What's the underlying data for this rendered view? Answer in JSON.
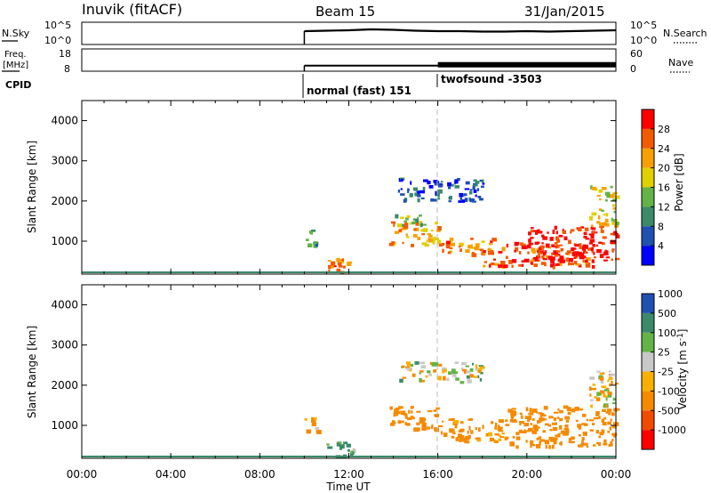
{
  "header": {
    "station": "Inuvik (fitACF)",
    "beam": "Beam 15",
    "date": "31/Jan/2015"
  },
  "noise_panel": {
    "left_label": "N.Sky",
    "right_label": "N.Search",
    "left_ticks": [
      "10^5",
      "10^0"
    ],
    "right_ticks": [
      "10^5",
      "10^0"
    ]
  },
  "freq_panel": {
    "left_label_line1": "Freq.",
    "left_label_line2": "[MHz]",
    "right_label": "Nave",
    "left_ticks": [
      "18",
      "8"
    ],
    "right_ticks": [
      "60",
      "0"
    ]
  },
  "cpid_panel": {
    "label": "CPID",
    "modes": [
      {
        "label": "normal (fast) 151",
        "start_hour": 10.0
      },
      {
        "label": "twofsound -3503",
        "start_hour": 16.0
      }
    ]
  },
  "colors": {
    "power_scale": [
      "#0000ff",
      "#2050b0",
      "#3a8a6a",
      "#63b347",
      "#e0d000",
      "#f7a000",
      "#f25a00",
      "#ff0000"
    ],
    "velocity_scale": [
      "#ff0000",
      "#f24a00",
      "#f58a00",
      "#f7b000",
      "#c8c8c8",
      "#63b347",
      "#3a8a6a",
      "#2050b0"
    ]
  },
  "chart_data": [
    {
      "type": "line",
      "title": "N.Sky",
      "x_unit": "hours UT",
      "xlim": [
        0,
        24
      ],
      "series": [
        {
          "name": "N.Sky",
          "x": [
            10.0,
            11,
            12,
            13,
            14,
            15,
            16,
            17,
            18,
            19,
            20,
            21,
            22,
            23,
            24
          ],
          "y": [
            3.0,
            3.1,
            3.2,
            3.4,
            3.3,
            3.1,
            3.0,
            3.0,
            2.9,
            2.9,
            3.0,
            2.9,
            3.0,
            3.1,
            3.2
          ]
        }
      ]
    },
    {
      "type": "line",
      "title": "Freq. [MHz]",
      "ylim": [
        8,
        18
      ],
      "series": [
        {
          "name": "Freq.",
          "x": [
            10.0,
            16.0,
            24.0
          ],
          "y": [
            10.5,
            10.5,
            10.5
          ]
        }
      ]
    },
    {
      "type": "heatmap",
      "title": "Power [dB]",
      "xlabel": "Time UT",
      "ylabel": "Slant Range [km]",
      "xlim": [
        0,
        24
      ],
      "ylim": [
        180,
        4500
      ],
      "x_ticks": [
        "00:00",
        "04:00",
        "08:00",
        "12:00",
        "16:00",
        "20:00",
        "00:00"
      ],
      "y_ticks": [
        1000,
        2000,
        3000,
        4000
      ],
      "colorbar_label": "Power [dB]",
      "colorbar_ticks": [
        4,
        8,
        12,
        16,
        20,
        24,
        28
      ],
      "clim": [
        0,
        32
      ],
      "regions": [
        {
          "t_start": 10.0,
          "t_end": 10.6,
          "r_start": 850,
          "r_end": 1300,
          "level": 10
        },
        {
          "t_start": 10.7,
          "t_end": 12.2,
          "r_start": 250,
          "r_end": 600,
          "level": 24
        },
        {
          "t_start": 13.8,
          "t_end": 16.0,
          "r_start": 900,
          "r_end": 1500,
          "level": 22
        },
        {
          "t_start": 14.0,
          "t_end": 15.5,
          "r_start": 1400,
          "r_end": 1700,
          "level": 14
        },
        {
          "t_start": 14.2,
          "t_end": 18.0,
          "r_start": 2000,
          "r_end": 2600,
          "level": 6
        },
        {
          "t_start": 16.0,
          "t_end": 18.5,
          "r_start": 700,
          "r_end": 1100,
          "level": 24
        },
        {
          "t_start": 18.0,
          "t_end": 23.0,
          "r_start": 400,
          "r_end": 1000,
          "level": 26
        },
        {
          "t_start": 20.0,
          "t_end": 24.0,
          "r_start": 500,
          "r_end": 1400,
          "level": 30
        },
        {
          "t_start": 22.8,
          "t_end": 24.0,
          "r_start": 1400,
          "r_end": 2400,
          "level": 18
        }
      ]
    },
    {
      "type": "heatmap",
      "title": "Velocity [m s-1]",
      "xlabel": "Time UT",
      "ylabel": "Slant Range [km]",
      "xlim": [
        0,
        24
      ],
      "ylim": [
        180,
        4500
      ],
      "x_ticks": [
        "00:00",
        "04:00",
        "08:00",
        "12:00",
        "16:00",
        "20:00",
        "00:00"
      ],
      "y_ticks": [
        1000,
        2000,
        3000,
        4000
      ],
      "colorbar_label": "Velocity [m s-1]",
      "colorbar_ticks": [
        -1000,
        -500,
        -100,
        -25,
        25,
        100,
        500,
        1000
      ],
      "regions": [
        {
          "t_start": 10.0,
          "t_end": 10.6,
          "r_start": 850,
          "r_end": 1300,
          "value": -150
        },
        {
          "t_start": 10.7,
          "t_end": 12.2,
          "r_start": 250,
          "r_end": 600,
          "value": 120
        },
        {
          "t_start": 13.8,
          "t_end": 16.0,
          "r_start": 900,
          "r_end": 1500,
          "value": -250
        },
        {
          "t_start": 14.2,
          "t_end": 18.0,
          "r_start": 2100,
          "r_end": 2600,
          "value": 0
        },
        {
          "t_start": 16.0,
          "t_end": 19.0,
          "r_start": 600,
          "r_end": 1200,
          "value": -200
        },
        {
          "t_start": 19.0,
          "t_end": 24.0,
          "r_start": 500,
          "r_end": 1500,
          "value": -300
        },
        {
          "t_start": 22.8,
          "t_end": 24.0,
          "r_start": 1500,
          "r_end": 2500,
          "value": -80
        }
      ]
    }
  ]
}
